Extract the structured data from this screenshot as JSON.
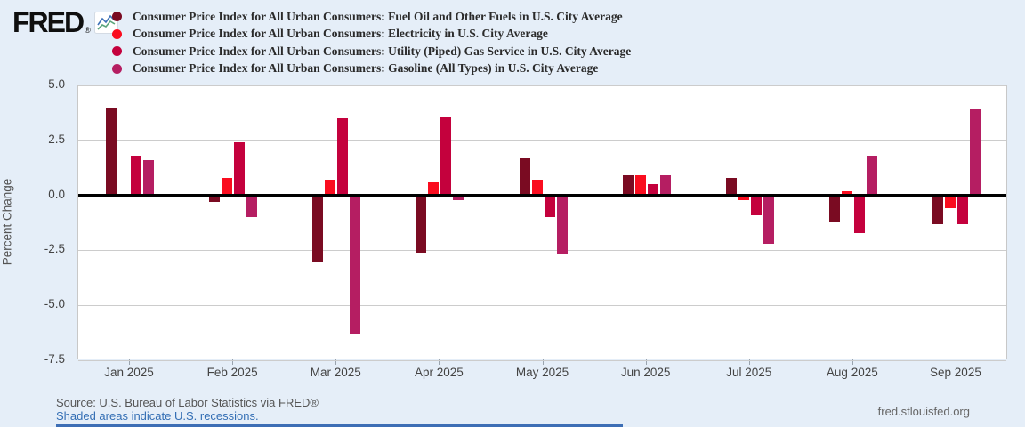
{
  "header": {
    "logo_text": "FRED",
    "logo_registered": "®"
  },
  "chart_data": {
    "type": "bar",
    "title": "",
    "xlabel": "",
    "ylabel": "Percent Change",
    "ylim": [
      -7.5,
      5.0
    ],
    "y_ticks": [
      5.0,
      2.5,
      0.0,
      -2.5,
      -5.0,
      -7.5
    ],
    "grid": true,
    "legend_position": "top",
    "categories": [
      "Jan 2025",
      "Feb 2025",
      "Mar 2025",
      "Apr 2025",
      "May 2025",
      "Jun 2025",
      "Jul 2025",
      "Aug 2025",
      "Sep 2025"
    ],
    "series": [
      {
        "name": "Consumer Price Index for All Urban Consumers: Fuel Oil and Other Fuels in U.S. City Average",
        "color": "#7a0b22",
        "values": [
          4.0,
          -0.3,
          -3.0,
          -2.6,
          1.7,
          0.9,
          0.8,
          -1.2,
          -1.3
        ]
      },
      {
        "name": "Consumer Price Index for All Urban Consumers: Electricity in U.S. City Average",
        "color": "#fa0d1f",
        "values": [
          -0.1,
          0.8,
          0.7,
          0.6,
          0.7,
          0.9,
          -0.2,
          0.2,
          -0.6
        ]
      },
      {
        "name": "Consumer Price Index for All Urban Consumers: Utility (Piped) Gas Service in U.S. City Average",
        "color": "#c4013d",
        "values": [
          1.8,
          2.4,
          3.5,
          3.6,
          -1.0,
          0.5,
          -0.9,
          -1.7,
          -1.3
        ]
      },
      {
        "name": "Consumer Price Index for All Urban Consumers: Gasoline (All Types) in U.S. City Average",
        "color": "#b51e62",
        "values": [
          1.6,
          -1.0,
          -6.3,
          -0.2,
          -2.7,
          0.9,
          -2.2,
          1.8,
          3.9
        ]
      }
    ]
  },
  "footer": {
    "source": "Source: U.S. Bureau of Labor Statistics via FRED®",
    "recession_note": "Shaded areas indicate U.S. recessions.",
    "site": "fred.stlouisfed.org"
  },
  "colors": {
    "background": "#e5eef8",
    "plot_background": "#ffffff",
    "gridline": "#cccccc",
    "zero_line": "#000000",
    "link": "#336eb4",
    "bottom_bar": "#3d6eb5"
  }
}
